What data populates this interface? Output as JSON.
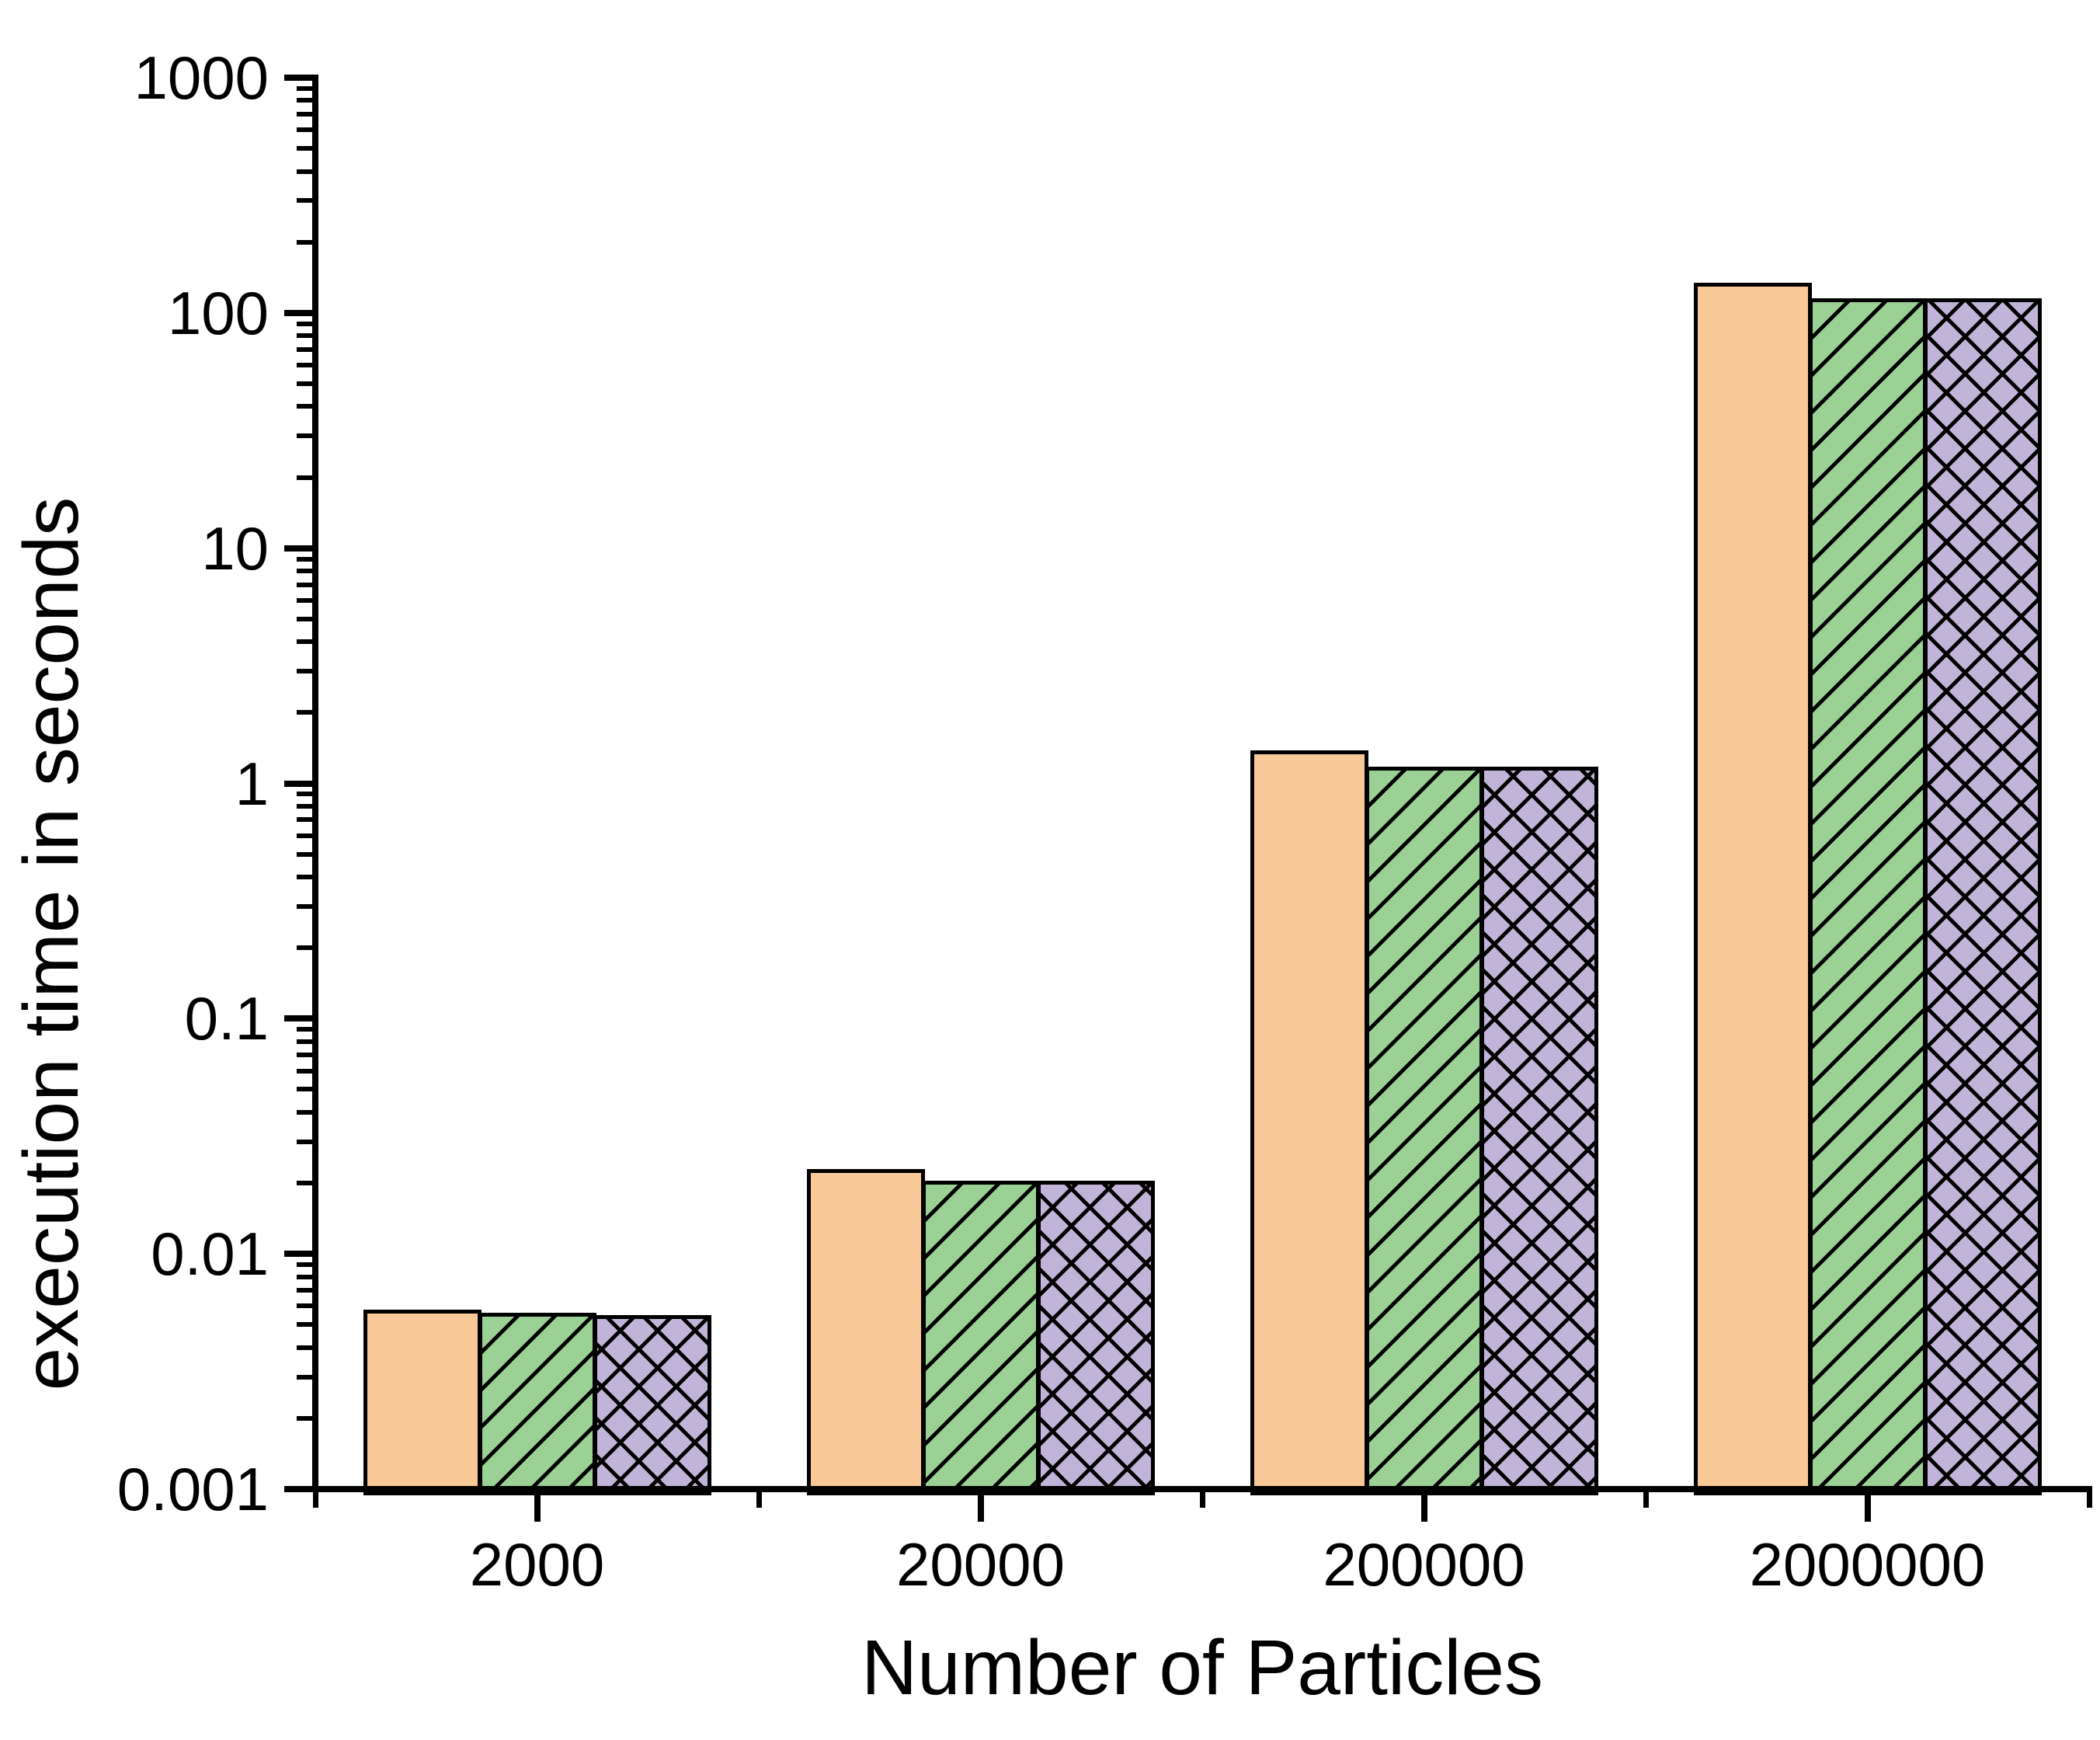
{
  "figure": {
    "background": "#ffffff",
    "axis_color": "#000000"
  },
  "chart_data": {
    "type": "bar",
    "title": "",
    "xlabel": "Number of Particles",
    "ylabel": "execution time in seconds",
    "y_scale": "log",
    "ylim": [
      0.001,
      1000
    ],
    "y_tick_labels": [
      "1000",
      "100",
      "10",
      "1",
      "0.1",
      "0.01",
      "0.001"
    ],
    "categories": [
      "2000",
      "20000",
      "200000",
      "2000000"
    ],
    "series": [
      {
        "name": "orange-solid",
        "fill": "#FAC998",
        "hatch": "none",
        "values": [
          0.0058,
          0.023,
          1.38,
          134
        ]
      },
      {
        "name": "green-diagonal-hatch",
        "fill": "#9BD194",
        "hatch": "diagonal",
        "values": [
          0.0056,
          0.0205,
          1.18,
          115
        ]
      },
      {
        "name": "purple-cross-hatch",
        "fill": "#C1B4D9",
        "hatch": "cross",
        "values": [
          0.0055,
          0.0205,
          1.18,
          115
        ]
      }
    ],
    "legend": "none",
    "grid": false
  }
}
